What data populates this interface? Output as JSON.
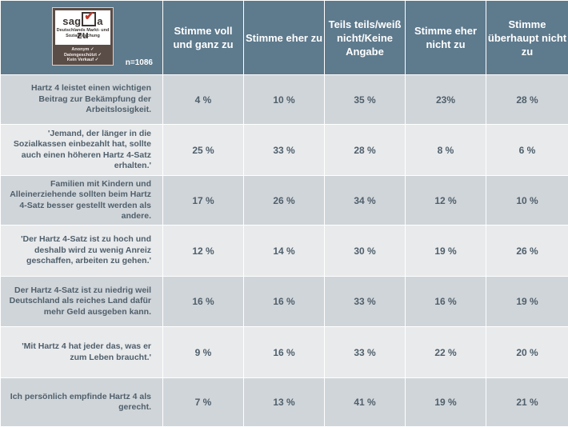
{
  "header": {
    "logo": {
      "mark": "sag a zu",
      "subtitle": "Deutschlands Markt- und Sozialforschung",
      "badges": [
        "Anonym ✓",
        "Datengeschützt ✓",
        "Kein Verkauf ✓"
      ]
    },
    "sample_label": "n=1086",
    "columns": [
      "Stimme voll und ganz zu",
      "Stimme eher zu",
      "Teils teils/weiß nicht/Keine Angabe",
      "Stimme eher nicht zu",
      "Stimme überhaupt nicht zu"
    ]
  },
  "rows": [
    {
      "statement": "Hartz 4 leistet einen wichtigen Beitrag zur Bekämpfung der Arbeitslosigkeit.",
      "values": [
        "4 %",
        "10 %",
        "35 %",
        "23%",
        "28 %"
      ]
    },
    {
      "statement": "'Jemand, der länger in die Sozialkassen einbezahlt hat, sollte auch einen höheren Hartz 4-Satz erhalten.'",
      "values": [
        "25 %",
        "33 %",
        "28 %",
        "8 %",
        "6 %"
      ]
    },
    {
      "statement": "Familien mit Kindern und Alleinerziehende sollten beim Hartz 4-Satz besser gestellt werden als andere.",
      "values": [
        "17 %",
        "26 %",
        "34 %",
        "12 %",
        "10 %"
      ]
    },
    {
      "statement": "'Der Hartz 4-Satz ist zu hoch und deshalb wird zu wenig Anreiz geschaffen, arbeiten zu gehen.'",
      "values": [
        "12 %",
        "14 %",
        "30 %",
        "19 %",
        "26 %"
      ]
    },
    {
      "statement": "Der Hartz 4-Satz ist zu niedrig weil Deutschland als reiches Land dafür mehr Geld ausgeben kann.",
      "values": [
        "16 %",
        "16 %",
        "33 %",
        "16 %",
        "19 %"
      ]
    },
    {
      "statement": "'Mit Hartz 4 hat jeder das, was er zum Leben braucht.'",
      "values": [
        "9 %",
        "16 %",
        "33 %",
        "22 %",
        "20 %"
      ]
    },
    {
      "statement": "Ich persönlich empfinde Hartz 4 als gerecht.",
      "values": [
        "7 %",
        "13 %",
        "41 %",
        "19 %",
        "21 %"
      ]
    }
  ]
}
